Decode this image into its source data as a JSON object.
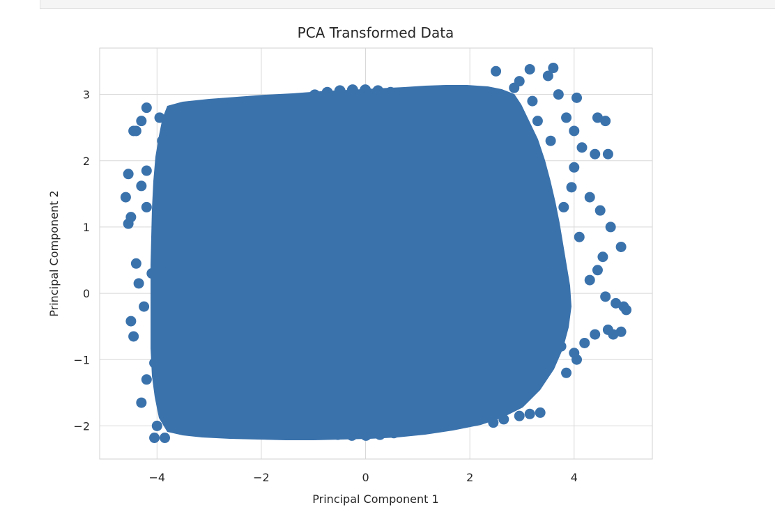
{
  "chart_data": {
    "type": "scatter",
    "title": "PCA Transformed Data",
    "xlabel": "Principal Component 1",
    "ylabel": "Principal Component 2",
    "xlim": [
      -5.1,
      5.5
    ],
    "ylim": [
      -2.5,
      3.7
    ],
    "xticks": [
      -4,
      -2,
      0,
      2,
      4
    ],
    "xtick_labels": [
      "−4",
      "−2",
      "0",
      "2",
      "4"
    ],
    "yticks": [
      -2,
      -1,
      0,
      1,
      2,
      3
    ],
    "ytick_labels": [
      "−2",
      "−1",
      "0",
      "1",
      "2",
      "3"
    ],
    "grid": true,
    "marker_color": "#3a72ac",
    "series": [
      {
        "points": [
          [
            -4.6,
            1.45
          ],
          [
            -4.55,
            1.05
          ],
          [
            -4.5,
            1.15
          ],
          [
            -4.55,
            1.8
          ],
          [
            -4.45,
            2.45
          ],
          [
            -4.4,
            2.45
          ],
          [
            -4.5,
            -0.42
          ],
          [
            -4.45,
            -0.65
          ],
          [
            -4.4,
            0.45
          ],
          [
            -4.3,
            1.62
          ],
          [
            -4.3,
            2.6
          ],
          [
            -4.2,
            2.8
          ],
          [
            -4.2,
            1.85
          ],
          [
            -4.1,
            0.3
          ],
          [
            -4.3,
            -1.65
          ],
          [
            -4.2,
            -1.3
          ],
          [
            -4.05,
            -2.18
          ],
          [
            -3.85,
            -2.18
          ],
          [
            -4.0,
            -2.0
          ],
          [
            -3.95,
            2.65
          ],
          [
            -4.05,
            -1.05
          ],
          [
            -4.35,
            0.15
          ],
          [
            -4.2,
            1.3
          ],
          [
            -4.25,
            -0.2
          ],
          [
            -3.9,
            2.3
          ],
          [
            3.15,
            3.38
          ],
          [
            3.6,
            3.4
          ],
          [
            2.5,
            3.35
          ],
          [
            2.95,
            3.2
          ],
          [
            3.5,
            3.28
          ],
          [
            3.7,
            3.0
          ],
          [
            4.05,
            2.95
          ],
          [
            4.45,
            2.65
          ],
          [
            4.6,
            2.6
          ],
          [
            4.65,
            2.1
          ],
          [
            4.4,
            2.1
          ],
          [
            4.15,
            2.2
          ],
          [
            4.0,
            2.45
          ],
          [
            3.85,
            2.65
          ],
          [
            4.0,
            1.9
          ],
          [
            4.3,
            1.45
          ],
          [
            4.5,
            1.25
          ],
          [
            4.7,
            1.0
          ],
          [
            4.9,
            0.7
          ],
          [
            4.55,
            0.55
          ],
          [
            4.95,
            -0.2
          ],
          [
            5.0,
            -0.25
          ],
          [
            4.8,
            -0.15
          ],
          [
            4.6,
            -0.05
          ],
          [
            4.65,
            -0.55
          ],
          [
            4.9,
            -0.58
          ],
          [
            4.75,
            -0.62
          ],
          [
            4.4,
            -0.62
          ],
          [
            4.2,
            -0.75
          ],
          [
            4.0,
            -0.9
          ],
          [
            4.05,
            -1.0
          ],
          [
            3.85,
            -1.2
          ],
          [
            3.35,
            -1.8
          ],
          [
            3.15,
            -1.82
          ],
          [
            2.95,
            -1.85
          ],
          [
            2.65,
            -1.9
          ],
          [
            2.45,
            -1.95
          ],
          [
            3.05,
            -1.55
          ],
          [
            3.2,
            -1.2
          ],
          [
            3.15,
            -1.4
          ],
          [
            3.75,
            -0.8
          ],
          [
            4.3,
            0.2
          ],
          [
            4.45,
            0.35
          ],
          [
            4.1,
            0.85
          ],
          [
            3.8,
            1.3
          ],
          [
            3.95,
            1.6
          ],
          [
            3.55,
            2.3
          ],
          [
            3.3,
            2.6
          ],
          [
            3.2,
            2.9
          ],
          [
            2.85,
            3.1
          ]
        ]
      }
    ]
  }
}
